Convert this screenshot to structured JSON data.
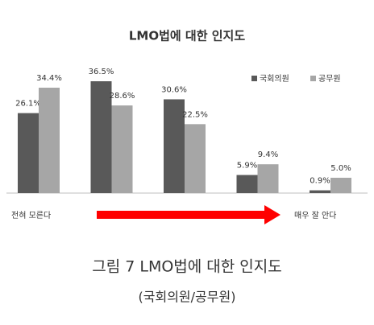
{
  "chart_data": {
    "type": "bar",
    "title": "LMO법에 대한 인지도",
    "categories": [
      null,
      null,
      null,
      null,
      null
    ],
    "series": [
      {
        "name": "국회의원",
        "color": "#595959",
        "values": [
          26.1,
          36.5,
          30.6,
          5.9,
          0.9
        ],
        "value_labels": [
          "26.1%",
          "36.5%",
          "30.6%",
          "5.9%",
          "0.9%"
        ]
      },
      {
        "name": "공무원",
        "color": "#a6a6a6",
        "values": [
          34.4,
          28.6,
          22.5,
          9.4,
          5.0
        ],
        "value_labels": [
          "34.4%",
          "28.6%",
          "22.5%",
          "9.4%",
          "5.0%"
        ]
      }
    ],
    "annotations": [
      "전혀 모른다",
      "매우 잘 안다"
    ],
    "legend": "top-right",
    "grid": false
  },
  "caption": {
    "title": "그림 7 LMO법에 대한 인지도",
    "subtitle": "(국회의원/공무원)"
  }
}
